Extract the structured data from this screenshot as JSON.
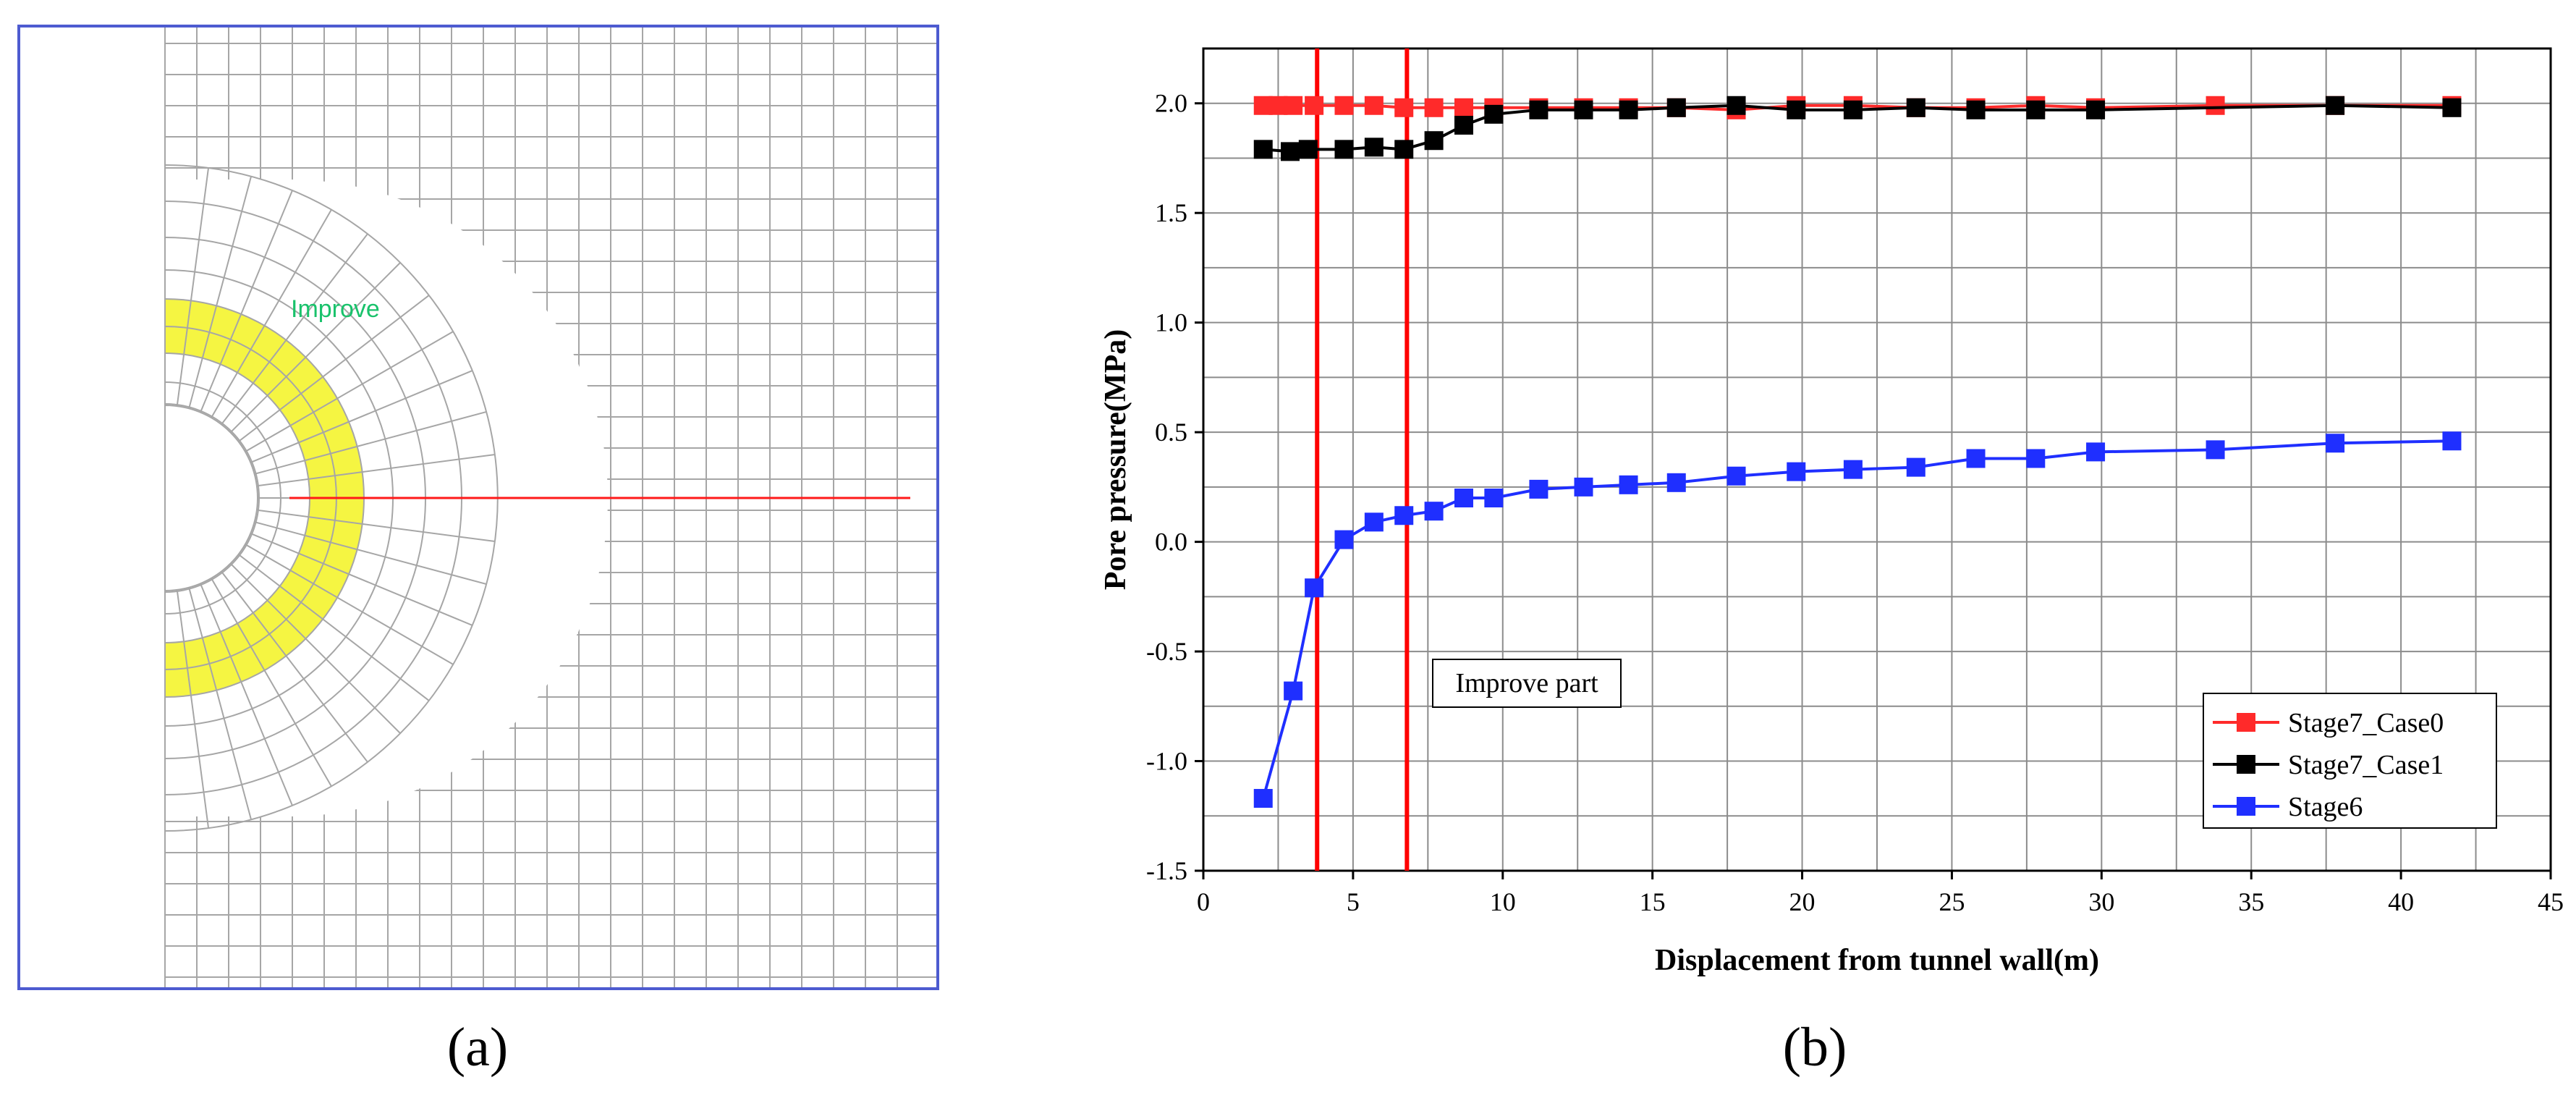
{
  "panel_a": {
    "caption": "(a)",
    "improve_label": "Improve",
    "colors": {
      "frame": "#4d5bd0",
      "mesh": "#a6a6a6",
      "improve_fill": "#f5f542",
      "section_line": "#ff1a1a",
      "label": "#19c26b"
    }
  },
  "panel_b": {
    "caption": "(b)",
    "annotation": "Improve part"
  },
  "chart_data": {
    "type": "line",
    "title": "",
    "xlabel": "Displacement from tunnel wall(m)",
    "ylabel": "Pore pressure(MPa)",
    "xlim": [
      0,
      45
    ],
    "ylim": [
      -1.5,
      2.25
    ],
    "xticks": [
      0,
      5,
      10,
      15,
      20,
      25,
      30,
      35,
      40,
      45
    ],
    "yticks": [
      -1.5,
      -1.0,
      -0.5,
      0.0,
      0.5,
      1.0,
      1.5,
      2.0
    ],
    "xtick_labels": [
      "0",
      "5",
      "10",
      "15",
      "20",
      "25",
      "30",
      "35",
      "40",
      "45"
    ],
    "ytick_labels": [
      "-1.5",
      "-1.0",
      "-0.5",
      "0.0",
      "0.5",
      "1.0",
      "1.5",
      "2.0"
    ],
    "grid": true,
    "legend_position": "bottom-right",
    "vertical_lines": [
      3.8,
      6.8
    ],
    "vertical_line_color": "#ff0000",
    "series": [
      {
        "name": "Stage7_Case0",
        "color": "#ff2a2a",
        "x": [
          2.0,
          2.5,
          3.0,
          3.7,
          4.7,
          5.7,
          6.7,
          7.7,
          8.7,
          9.7,
          11.2,
          12.7,
          14.2,
          15.8,
          17.8,
          19.8,
          21.7,
          23.8,
          25.8,
          27.8,
          29.8,
          33.8,
          37.8,
          41.7
        ],
        "y": [
          1.99,
          1.99,
          1.99,
          1.99,
          1.99,
          1.99,
          1.98,
          1.98,
          1.98,
          1.98,
          1.98,
          1.98,
          1.98,
          1.98,
          1.97,
          1.99,
          1.99,
          1.98,
          1.98,
          1.99,
          1.98,
          1.99,
          1.99,
          1.99
        ]
      },
      {
        "name": "Stage7_Case1",
        "color": "#000000",
        "x": [
          2.0,
          2.9,
          3.5,
          4.7,
          5.7,
          6.7,
          7.7,
          8.7,
          9.7,
          11.2,
          12.7,
          14.2,
          15.8,
          17.8,
          19.8,
          21.7,
          23.8,
          25.8,
          27.8,
          29.8,
          37.8,
          41.7
        ],
        "y": [
          1.79,
          1.78,
          1.79,
          1.79,
          1.8,
          1.79,
          1.83,
          1.9,
          1.95,
          1.97,
          1.97,
          1.97,
          1.98,
          1.99,
          1.97,
          1.97,
          1.98,
          1.97,
          1.97,
          1.97,
          1.99,
          1.98
        ]
      },
      {
        "name": "Stage6",
        "color": "#1f2fff",
        "x": [
          2.0,
          3.0,
          3.7,
          4.7,
          5.7,
          6.7,
          7.7,
          8.7,
          9.7,
          11.2,
          12.7,
          14.2,
          15.8,
          17.8,
          19.8,
          21.7,
          23.8,
          25.8,
          27.8,
          29.8,
          33.8,
          37.8,
          41.7
        ],
        "y": [
          -1.17,
          -0.68,
          -0.21,
          0.01,
          0.09,
          0.12,
          0.14,
          0.2,
          0.2,
          0.24,
          0.25,
          0.26,
          0.27,
          0.3,
          0.32,
          0.33,
          0.34,
          0.38,
          0.38,
          0.41,
          0.42,
          0.45,
          0.46
        ]
      }
    ]
  }
}
